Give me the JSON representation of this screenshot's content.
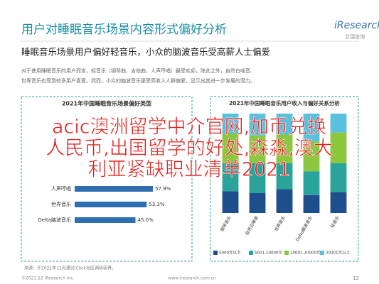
{
  "header": {
    "title": "用户对睡眠音乐场景内容形式偏好分析",
    "logo": "iResearch",
    "logo_sub": "艾瑞咨询"
  },
  "subtitle": "睡眠音乐场景用户偏好轻音乐，小众的脑波音乐受高薪人士偏爱",
  "body": [
    "对于使用睡眠音乐的用户而言，轻音乐（钢琴曲、吉他曲、人声哼唱）最受欢迎，除此之外，自然白噪音、",
    "世界音乐也受到较多用户喜爱。然而，小众的脑波音乐更受高收入人群偏爱，显示出其进一步发展的潜力。"
  ],
  "overlay": [
    "acic澳洲留学中介官网,加币兑换",
    "人民币,出国留学的好处,森淼,澳大",
    "利亚紧缺职业清单2021"
  ],
  "chart_data": [
    {
      "type": "hbar",
      "title": "2021年中国睡眠音乐场景偏好类型",
      "categories": [
        "人声哼唱",
        "世界音乐",
        "Delta脑波音乐"
      ],
      "values": [
        57.9,
        53.3,
        45.0
      ],
      "value_labels": [
        "57.9%",
        "53.3%",
        "45.0%"
      ],
      "color": "#2f6fb0",
      "xlim": [
        0,
        100
      ],
      "note": "来源：于2021年11月通过iClick社区调研获得。"
    },
    {
      "type": "stacked-bar",
      "title": "2021年中国睡眠音乐用户收入与偏好关系分析",
      "categories": [
        "钢琴音乐",
        "自然白噪音",
        "世界音乐",
        "Delta脑波音乐",
        "轻音乐"
      ],
      "series": [
        {
          "name": "5000元以下",
          "color": "#1f4e8c",
          "values": [
            22,
            20,
            24,
            18,
            21
          ]
        },
        {
          "name": "5001-10000元",
          "color": "#2aa39a",
          "values": [
            28,
            30,
            26,
            24,
            29
          ]
        },
        {
          "name": "10001-20000元",
          "color": "#8dc63f",
          "values": [
            30,
            28,
            29,
            30,
            31
          ]
        },
        {
          "name": "20001元以上",
          "color": "#5bc0de",
          "values": [
            20,
            22,
            21,
            28,
            19
          ]
        }
      ],
      "ylim": [
        0,
        100
      ]
    }
  ],
  "footer": {
    "copyright": "©2021.12 iResearch Inc.",
    "site": "www.iresearch.com.cn",
    "page": "12"
  }
}
